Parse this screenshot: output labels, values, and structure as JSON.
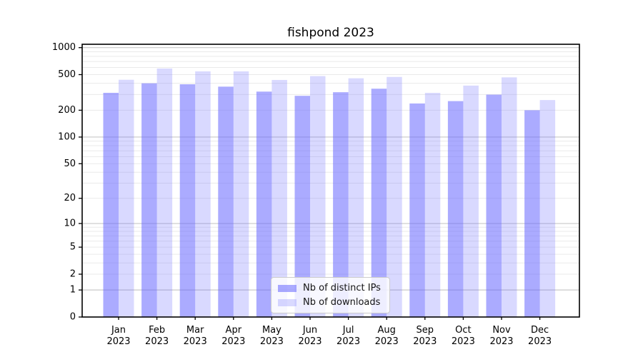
{
  "chart_data": {
    "type": "bar",
    "title": "fishpond 2023",
    "categories": [
      "Jan",
      "Feb",
      "Mar",
      "Apr",
      "May",
      "Jun",
      "Jul",
      "Aug",
      "Sep",
      "Oct",
      "Nov",
      "Dec"
    ],
    "x_tick_year": "2023",
    "series": [
      {
        "name": "Nb of distinct IPs",
        "color": "#6666ff",
        "alpha": 0.55,
        "values": [
          313,
          400,
          390,
          367,
          323,
          290,
          318,
          348,
          238,
          253,
          299,
          200
        ]
      },
      {
        "name": "Nb of downloads",
        "color": "#6666ff",
        "alpha": 0.25,
        "values": [
          438,
          585,
          544,
          544,
          436,
          481,
          455,
          471,
          313,
          377,
          466,
          260
        ]
      }
    ],
    "yscale": "log1p",
    "ylim": [
      0,
      1000
    ],
    "y_ticks": [
      0,
      1,
      2,
      5,
      10,
      20,
      50,
      100,
      200,
      500,
      1000
    ],
    "grid": true,
    "legend_position": "lower center"
  },
  "colors": {
    "major_grid": "#c8c8c8",
    "minor_grid": "#eaeaea",
    "frame": "#000000",
    "text": "#000000"
  }
}
